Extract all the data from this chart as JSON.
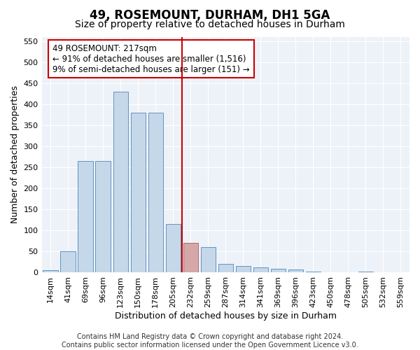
{
  "title": "49, ROSEMOUNT, DURHAM, DH1 5GA",
  "subtitle": "Size of property relative to detached houses in Durham",
  "xlabel": "Distribution of detached houses by size in Durham",
  "ylabel": "Number of detached properties",
  "categories": [
    "14sqm",
    "41sqm",
    "69sqm",
    "96sqm",
    "123sqm",
    "150sqm",
    "178sqm",
    "205sqm",
    "232sqm",
    "259sqm",
    "287sqm",
    "314sqm",
    "341sqm",
    "369sqm",
    "396sqm",
    "423sqm",
    "450sqm",
    "478sqm",
    "505sqm",
    "532sqm",
    "559sqm"
  ],
  "values": [
    5,
    50,
    265,
    265,
    430,
    380,
    380,
    115,
    70,
    60,
    20,
    15,
    12,
    8,
    7,
    2,
    0,
    0,
    2,
    0,
    0
  ],
  "bar_color_normal": "#c5d8ea",
  "bar_edge_color": "#4f86b8",
  "highlight_bar_index": 8,
  "highlight_bar_color": "#d4a8a8",
  "highlight_bar_edge": "#b05555",
  "vline_color": "#cc0000",
  "ylim": [
    0,
    560
  ],
  "yticks": [
    0,
    50,
    100,
    150,
    200,
    250,
    300,
    350,
    400,
    450,
    500,
    550
  ],
  "annotation_text": "49 ROSEMOUNT: 217sqm\n← 91% of detached houses are smaller (1,516)\n9% of semi-detached houses are larger (151) →",
  "footer_line1": "Contains HM Land Registry data © Crown copyright and database right 2024.",
  "footer_line2": "Contains public sector information licensed under the Open Government Licence v3.0.",
  "background_color": "#edf2f8",
  "grid_color": "#ffffff",
  "title_fontsize": 12,
  "subtitle_fontsize": 10,
  "axis_label_fontsize": 9,
  "tick_fontsize": 8,
  "annotation_fontsize": 8.5,
  "footer_fontsize": 7
}
